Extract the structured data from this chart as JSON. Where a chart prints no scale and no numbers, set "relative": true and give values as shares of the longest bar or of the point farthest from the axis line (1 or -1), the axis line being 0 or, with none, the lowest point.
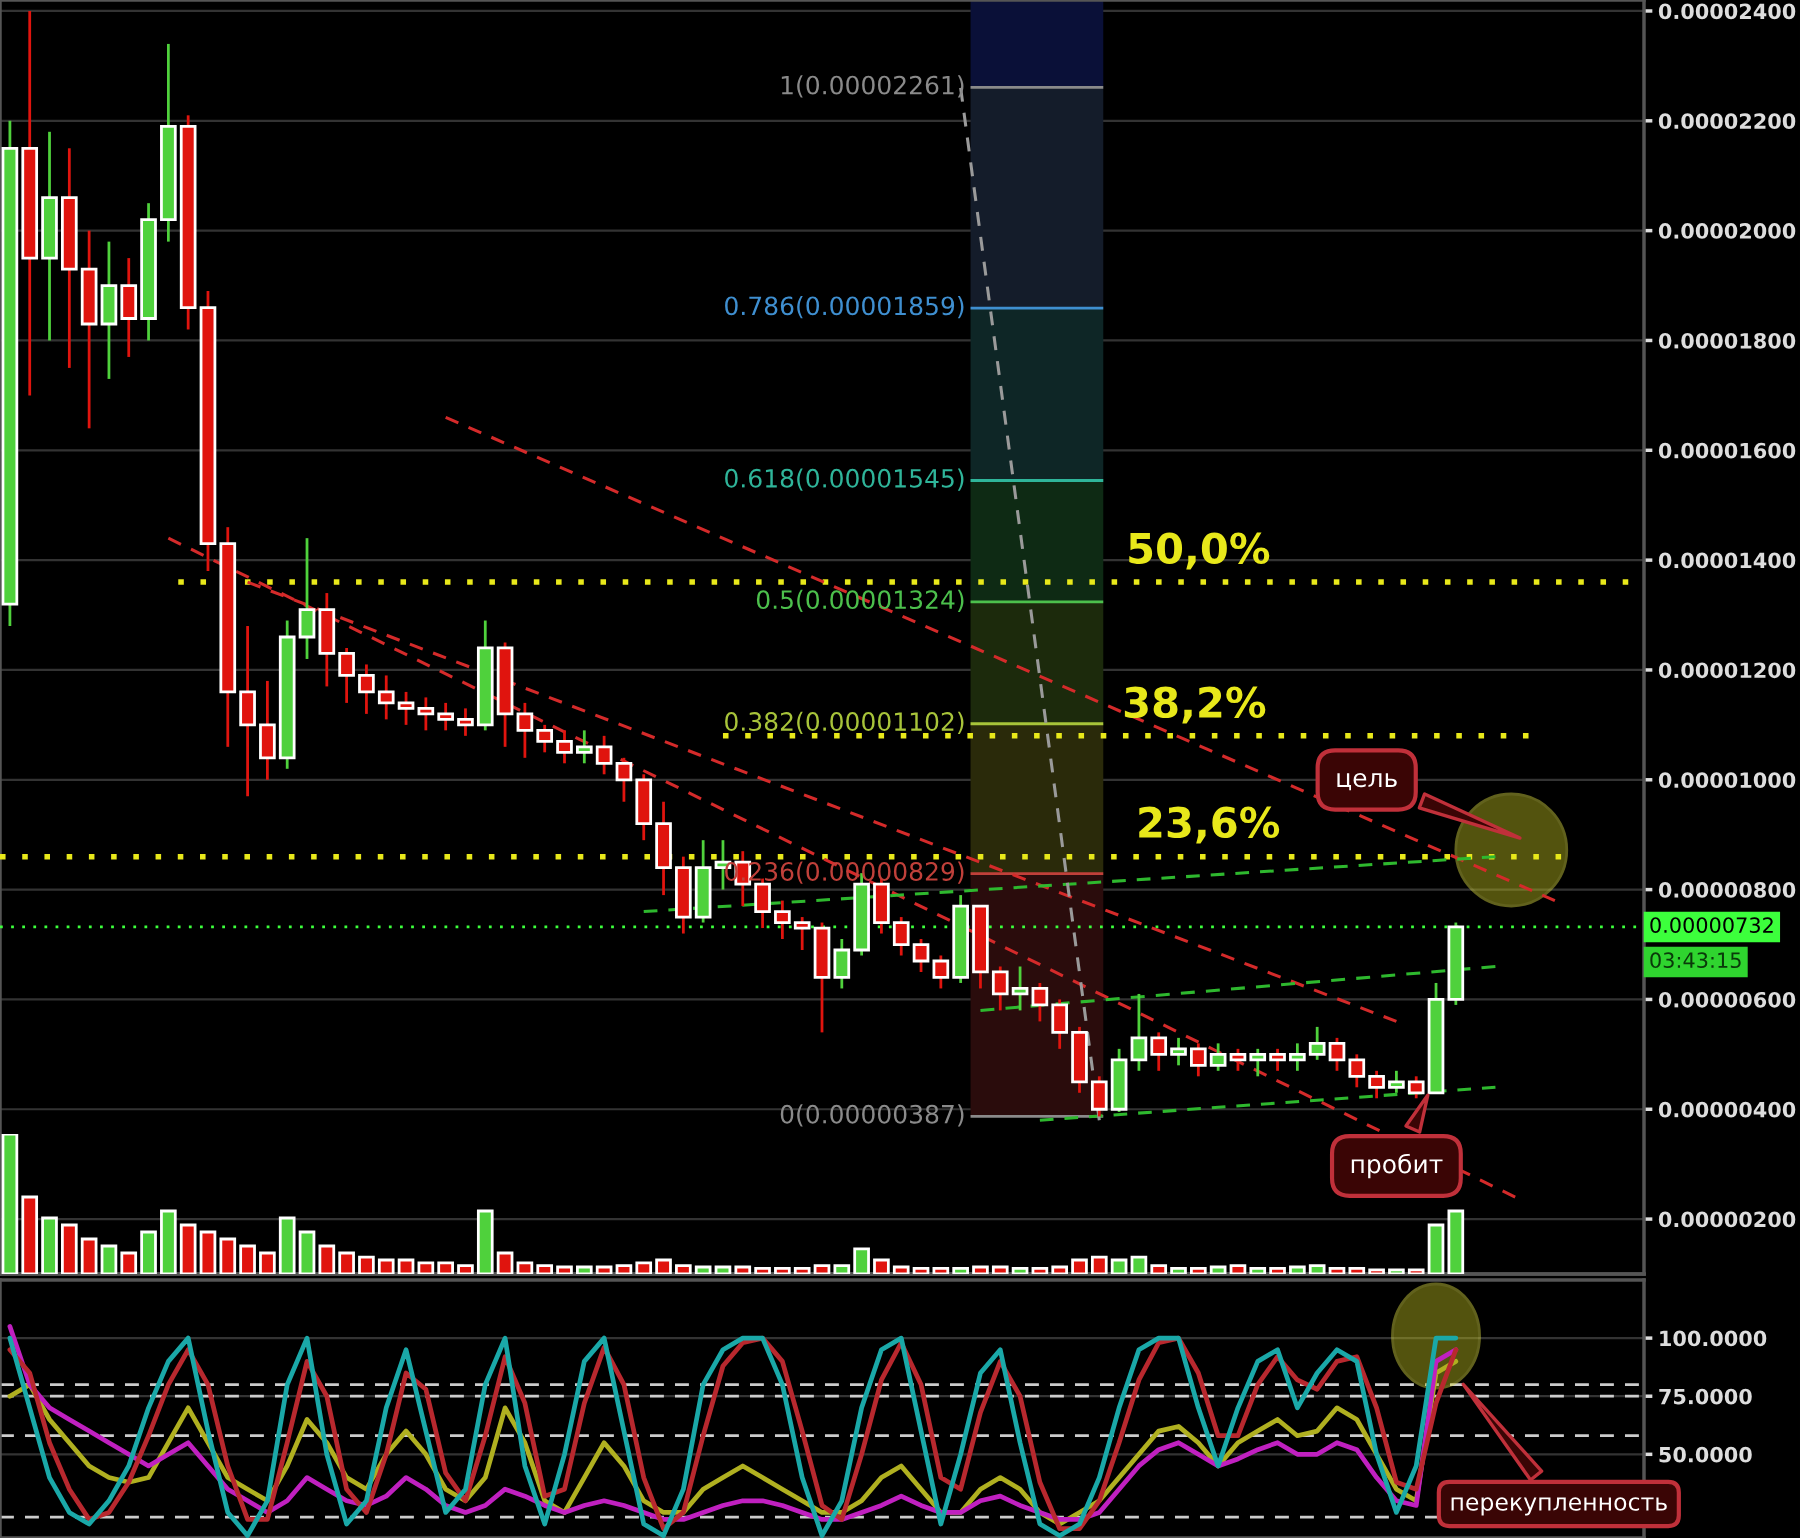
{
  "chart_data": [
    {
      "type": "candlestick",
      "categories": [
        null,
        null,
        null,
        null,
        null,
        null,
        null,
        null,
        null,
        null,
        null,
        null,
        null,
        null,
        null,
        null,
        null,
        null,
        null,
        null,
        null,
        null,
        null,
        null,
        null,
        null,
        null,
        null,
        null,
        null,
        null,
        null,
        null,
        null,
        null,
        null,
        null,
        null,
        null,
        null,
        null,
        null,
        null,
        null,
        null,
        null,
        null,
        null,
        null,
        null,
        null,
        null,
        null,
        null,
        null,
        null,
        null,
        null,
        null,
        null,
        null,
        null,
        null,
        null,
        null,
        null,
        null,
        null,
        null,
        null,
        null,
        null,
        null,
        null,
        null,
        null,
        null,
        null,
        null,
        null,
        null,
        null,
        null
      ],
      "ohlc": [
        [
          1.32e-05,
          2.2e-05,
          1.28e-05,
          2.15e-05
        ],
        [
          2.15e-05,
          2.4e-05,
          1.7e-05,
          1.95e-05
        ],
        [
          1.95e-05,
          2.18e-05,
          1.8e-05,
          2.06e-05
        ],
        [
          2.06e-05,
          2.15e-05,
          1.75e-05,
          1.93e-05
        ],
        [
          1.93e-05,
          2e-05,
          1.64e-05,
          1.83e-05
        ],
        [
          1.83e-05,
          1.98e-05,
          1.73e-05,
          1.9e-05
        ],
        [
          1.9e-05,
          1.95e-05,
          1.77e-05,
          1.84e-05
        ],
        [
          1.84e-05,
          2.05e-05,
          1.8e-05,
          2.02e-05
        ],
        [
          2.02e-05,
          2.34e-05,
          1.98e-05,
          2.19e-05
        ],
        [
          2.19e-05,
          2.21e-05,
          1.82e-05,
          1.86e-05
        ],
        [
          1.86e-05,
          1.89e-05,
          1.38e-05,
          1.43e-05
        ],
        [
          1.43e-05,
          1.46e-05,
          1.06e-05,
          1.16e-05
        ],
        [
          1.16e-05,
          1.28e-05,
          9.7e-06,
          1.1e-05
        ],
        [
          1.1e-05,
          1.18e-05,
          1e-05,
          1.04e-05
        ],
        [
          1.04e-05,
          1.29e-05,
          1.02e-05,
          1.26e-05
        ],
        [
          1.26e-05,
          1.44e-05,
          1.22e-05,
          1.31e-05
        ],
        [
          1.31e-05,
          1.34e-05,
          1.17e-05,
          1.23e-05
        ],
        [
          1.23e-05,
          1.24e-05,
          1.14e-05,
          1.19e-05
        ],
        [
          1.19e-05,
          1.21e-05,
          1.12e-05,
          1.16e-05
        ],
        [
          1.16e-05,
          1.19e-05,
          1.11e-05,
          1.14e-05
        ],
        [
          1.14e-05,
          1.16e-05,
          1.1e-05,
          1.13e-05
        ],
        [
          1.13e-05,
          1.15e-05,
          1.09e-05,
          1.12e-05
        ],
        [
          1.12e-05,
          1.14e-05,
          1.09e-05,
          1.11e-05
        ],
        [
          1.11e-05,
          1.13e-05,
          1.08e-05,
          1.1e-05
        ],
        [
          1.1e-05,
          1.29e-05,
          1.09e-05,
          1.24e-05
        ],
        [
          1.24e-05,
          1.25e-05,
          1.06e-05,
          1.12e-05
        ],
        [
          1.12e-05,
          1.14e-05,
          1.04e-05,
          1.09e-05
        ],
        [
          1.09e-05,
          1.1e-05,
          1.05e-05,
          1.07e-05
        ],
        [
          1.07e-05,
          1.09e-05,
          1.03e-05,
          1.05e-05
        ],
        [
          1.05e-05,
          1.09e-05,
          1.03e-05,
          1.06e-05
        ],
        [
          1.06e-05,
          1.08e-05,
          1.01e-05,
          1.03e-05
        ],
        [
          1.03e-05,
          1.04e-05,
          9.6e-06,
          1e-05
        ],
        [
          1e-05,
          1.01e-05,
          8.9e-06,
          9.2e-06
        ],
        [
          9.2e-06,
          9.6e-06,
          7.9e-06,
          8.4e-06
        ],
        [
          8.4e-06,
          8.6e-06,
          7.2e-06,
          7.5e-06
        ],
        [
          7.5e-06,
          8.9e-06,
          7.4e-06,
          8.4e-06
        ],
        [
          8.4e-06,
          8.9e-06,
          8e-06,
          8.5e-06
        ],
        [
          8.5e-06,
          8.7e-06,
          7.7e-06,
          8.1e-06
        ],
        [
          8.1e-06,
          8.2e-06,
          7.3e-06,
          7.6e-06
        ],
        [
          7.6e-06,
          7.8e-06,
          7.1e-06,
          7.4e-06
        ],
        [
          7.4e-06,
          7.5e-06,
          6.9e-06,
          7.3e-06
        ],
        [
          7.3e-06,
          7.4e-06,
          5.4e-06,
          6.4e-06
        ],
        [
          6.4e-06,
          7.1e-06,
          6.2e-06,
          6.9e-06
        ],
        [
          6.9e-06,
          8.3e-06,
          6.8e-06,
          8.1e-06
        ],
        [
          8.1e-06,
          8.2e-06,
          7.2e-06,
          7.4e-06
        ],
        [
          7.4e-06,
          7.5e-06,
          6.8e-06,
          7e-06
        ],
        [
          7e-06,
          7.1e-06,
          6.5e-06,
          6.7e-06
        ],
        [
          6.7e-06,
          6.8e-06,
          6.2e-06,
          6.4e-06
        ],
        [
          6.4e-06,
          7.9e-06,
          6.3e-06,
          7.7e-06
        ],
        [
          7.7e-06,
          7.7e-06,
          6.2e-06,
          6.5e-06
        ],
        [
          6.5e-06,
          6.6e-06,
          5.8e-06,
          6.1e-06
        ],
        [
          6.1e-06,
          6.6e-06,
          5.8e-06,
          6.2e-06
        ],
        [
          6.2e-06,
          6.3e-06,
          5.6e-06,
          5.9e-06
        ],
        [
          5.9e-06,
          6e-06,
          5.1e-06,
          5.4e-06
        ],
        [
          5.4e-06,
          5.5e-06,
          4.3e-06,
          4.5e-06
        ],
        [
          4.5e-06,
          4.6e-06,
          3.87e-06,
          4e-06
        ],
        [
          4e-06,
          5.1e-06,
          3.95e-06,
          4.9e-06
        ],
        [
          4.9e-06,
          6.1e-06,
          4.7e-06,
          5.3e-06
        ],
        [
          5.3e-06,
          5.4e-06,
          4.7e-06,
          5e-06
        ],
        [
          5e-06,
          5.3e-06,
          4.8e-06,
          5.1e-06
        ],
        [
          5.1e-06,
          5.2e-06,
          4.6e-06,
          4.8e-06
        ],
        [
          4.8e-06,
          5.2e-06,
          4.7e-06,
          5e-06
        ],
        [
          5e-06,
          5.1e-06,
          4.7e-06,
          4.9e-06
        ],
        [
          4.9e-06,
          5.1e-06,
          4.6e-06,
          5e-06
        ],
        [
          5e-06,
          5.1e-06,
          4.7e-06,
          4.9e-06
        ],
        [
          4.9e-06,
          5.2e-06,
          4.7e-06,
          5e-06
        ],
        [
          5e-06,
          5.5e-06,
          4.9e-06,
          5.2e-06
        ],
        [
          5.2e-06,
          5.3e-06,
          4.7e-06,
          4.9e-06
        ],
        [
          4.9e-06,
          5e-06,
          4.4e-06,
          4.6e-06
        ],
        [
          4.6e-06,
          4.7e-06,
          4.2e-06,
          4.4e-06
        ],
        [
          4.4e-06,
          4.7e-06,
          4.3e-06,
          4.5e-06
        ],
        [
          4.5e-06,
          4.6e-06,
          4.2e-06,
          4.3e-06
        ],
        [
          4.3e-06,
          6.3e-06,
          4.3e-06,
          6e-06
        ],
        [
          6e-06,
          7.4e-06,
          5.9e-06,
          7.32e-06
        ],
        null,
        null,
        null,
        null,
        null,
        null,
        null,
        null,
        null
      ],
      "colors": [
        "#4fd13c",
        "#e0140e",
        "#4fd13c",
        "#e0140e",
        "#e0140e",
        "#4fd13c",
        "#e0140e",
        "#4fd13c",
        "#4fd13c",
        "#e0140e",
        "#e0140e",
        "#e0140e",
        "#e0140e",
        "#e0140e",
        "#4fd13c",
        "#4fd13c",
        "#e0140e",
        "#e0140e",
        "#e0140e",
        "#e0140e",
        "#e0140e",
        "#e0140e",
        "#e0140e",
        "#e0140e",
        "#4fd13c",
        "#e0140e",
        "#e0140e",
        "#e0140e",
        "#e0140e",
        "#4fd13c",
        "#e0140e",
        "#e0140e",
        "#e0140e",
        "#e0140e",
        "#e0140e",
        "#4fd13c",
        "#4fd13c",
        "#e0140e",
        "#e0140e",
        "#e0140e",
        "#e0140e",
        "#e0140e",
        "#4fd13c",
        "#4fd13c",
        "#e0140e",
        "#e0140e",
        "#e0140e",
        "#e0140e",
        "#4fd13c",
        "#e0140e",
        "#e0140e",
        "#4fd13c",
        "#e0140e",
        "#e0140e",
        "#e0140e",
        "#e0140e",
        "#4fd13c",
        "#4fd13c",
        "#e0140e",
        "#4fd13c",
        "#e0140e",
        "#4fd13c",
        "#e0140e",
        "#4fd13c",
        "#e0140e",
        "#4fd13c",
        "#4fd13c",
        "#e0140e",
        "#e0140e",
        "#e0140e",
        "#4fd13c",
        "#e0140e",
        "#4fd13c",
        "#4fd13c",
        null,
        null,
        null,
        null,
        null,
        null,
        null,
        null,
        null
      ],
      "series": [
        {
          "type": "line",
          "color": "#d42a2a",
          "line_style": "dashed",
          "values": [
            null,
            null,
            null,
            null,
            null,
            null,
            null,
            null,
            1.44e-05,
            null,
            null,
            null,
            null,
            null,
            null,
            null,
            null,
            null,
            null,
            null,
            null,
            null,
            null,
            null,
            null,
            null,
            null,
            null,
            null,
            null,
            null,
            null,
            null,
            null,
            null,
            null,
            null,
            null,
            null,
            null,
            null,
            null,
            null,
            null,
            null,
            null,
            null,
            null,
            null,
            null,
            null,
            null,
            null,
            null,
            null,
            null,
            null,
            null,
            null,
            null,
            null,
            null,
            null,
            null,
            null,
            null,
            null,
            null,
            null,
            null,
            null,
            null,
            null,
            null,
            null,
            null,
            2.4e-06,
            null,
            null,
            null,
            null,
            null,
            null
          ]
        },
        {
          "type": "line",
          "color": "#d42a2a",
          "line_style": "dashed",
          "values": [
            null,
            null,
            null,
            null,
            null,
            null,
            null,
            null,
            null,
            null,
            null,
            null,
            1.36e-05,
            null,
            null,
            null,
            null,
            null,
            null,
            null,
            null,
            null,
            null,
            null,
            null,
            null,
            null,
            null,
            null,
            null,
            null,
            null,
            null,
            null,
            null,
            null,
            null,
            null,
            null,
            null,
            null,
            null,
            null,
            null,
            null,
            null,
            null,
            null,
            null,
            null,
            null,
            null,
            null,
            null,
            null,
            null,
            null,
            null,
            null,
            null,
            null,
            null,
            null,
            null,
            null,
            null,
            null,
            null,
            null,
            null,
            5.6e-06,
            null,
            null,
            null,
            null,
            null,
            null,
            null,
            null,
            null,
            null,
            null,
            null
          ]
        },
        {
          "type": "line",
          "color": "#d42a2a",
          "line_style": "dashed",
          "values": [
            null,
            null,
            null,
            null,
            null,
            null,
            null,
            null,
            null,
            null,
            null,
            null,
            null,
            null,
            null,
            null,
            null,
            null,
            null,
            null,
            null,
            null,
            1.66e-05,
            null,
            null,
            null,
            null,
            null,
            null,
            null,
            null,
            null,
            null,
            null,
            null,
            null,
            null,
            null,
            null,
            null,
            null,
            null,
            null,
            null,
            null,
            null,
            null,
            null,
            null,
            null,
            null,
            null,
            null,
            null,
            null,
            null,
            null,
            null,
            null,
            null,
            null,
            null,
            null,
            null,
            null,
            null,
            null,
            null,
            null,
            null,
            null,
            null,
            null,
            null,
            null,
            null,
            null,
            null,
            7.8e-06,
            null,
            null,
            null,
            null
          ]
        },
        {
          "type": "line",
          "color": "#2eb82e",
          "line_style": "dashed",
          "values": [
            null,
            null,
            null,
            null,
            null,
            null,
            null,
            null,
            null,
            null,
            null,
            null,
            null,
            null,
            null,
            null,
            null,
            null,
            null,
            null,
            null,
            null,
            null,
            null,
            null,
            null,
            null,
            null,
            null,
            null,
            null,
            null,
            7.6e-06,
            null,
            null,
            null,
            null,
            null,
            null,
            null,
            null,
            null,
            null,
            null,
            null,
            null,
            null,
            null,
            null,
            null,
            null,
            null,
            null,
            null,
            null,
            null,
            null,
            null,
            null,
            null,
            null,
            null,
            null,
            null,
            null,
            null,
            null,
            null,
            null,
            null,
            null,
            null,
            null,
            null,
            null,
            8.6e-06,
            null,
            null,
            null,
            null,
            null,
            null,
            null
          ]
        },
        {
          "type": "line",
          "color": "#2eb82e",
          "line_style": "dashed",
          "values": [
            null,
            null,
            null,
            null,
            null,
            null,
            null,
            null,
            null,
            null,
            null,
            null,
            null,
            null,
            null,
            null,
            null,
            null,
            null,
            null,
            null,
            null,
            null,
            null,
            null,
            null,
            null,
            null,
            null,
            null,
            null,
            null,
            null,
            null,
            null,
            null,
            null,
            null,
            null,
            null,
            null,
            null,
            null,
            null,
            null,
            null,
            null,
            null,
            null,
            5.8e-06,
            null,
            null,
            null,
            null,
            null,
            null,
            null,
            null,
            null,
            null,
            null,
            null,
            null,
            null,
            null,
            null,
            null,
            null,
            null,
            null,
            null,
            null,
            null,
            null,
            null,
            6.6e-06,
            null,
            null,
            null,
            null,
            null,
            null,
            null
          ]
        },
        {
          "type": "line",
          "color": "#2eb82e",
          "line_style": "dashed",
          "values": [
            null,
            null,
            null,
            null,
            null,
            null,
            null,
            null,
            null,
            null,
            null,
            null,
            null,
            null,
            null,
            null,
            null,
            null,
            null,
            null,
            null,
            null,
            null,
            null,
            null,
            null,
            null,
            null,
            null,
            null,
            null,
            null,
            null,
            null,
            null,
            null,
            null,
            null,
            null,
            null,
            null,
            null,
            null,
            null,
            null,
            null,
            null,
            null,
            null,
            null,
            null,
            null,
            3.8e-06,
            null,
            null,
            null,
            null,
            null,
            null,
            null,
            null,
            null,
            null,
            null,
            null,
            null,
            null,
            null,
            null,
            null,
            null,
            null,
            null,
            null,
            null,
            4.4e-06,
            null,
            null,
            null,
            null,
            null,
            null,
            null
          ]
        },
        {
          "type": "line",
          "color": "#9a9a9a",
          "line_style": "dashed",
          "values": [
            null,
            null,
            null,
            null,
            null,
            null,
            null,
            null,
            null,
            null,
            null,
            null,
            null,
            null,
            null,
            null,
            null,
            null,
            null,
            null,
            null,
            null,
            null,
            null,
            null,
            null,
            null,
            null,
            null,
            null,
            null,
            null,
            null,
            null,
            null,
            null,
            null,
            null,
            null,
            null,
            null,
            null,
            null,
            null,
            null,
            null,
            null,
            null,
            2.26e-05,
            null,
            null,
            null,
            null,
            null,
            null,
            3.8e-06,
            null,
            null,
            null,
            null,
            null,
            null,
            null,
            null,
            null,
            null,
            null,
            null,
            null,
            null,
            null,
            null,
            null,
            null,
            null,
            null,
            null,
            null,
            null,
            null,
            null,
            null,
            null
          ]
        }
      ],
      "ylim": [
        1e-06,
        2.42e-05
      ],
      "yticks": [
        {
          "value": 2e-06,
          "label": "0.00000200"
        },
        {
          "value": 4e-06,
          "label": "0.00000400"
        },
        {
          "value": 6e-06,
          "label": "0.00000600"
        },
        {
          "value": 8e-06,
          "label": "0.00000800"
        },
        {
          "value": 1e-05,
          "label": "0.00001000"
        },
        {
          "value": 1.2e-05,
          "label": "0.00001200"
        },
        {
          "value": 1.4e-05,
          "label": "0.00001400"
        },
        {
          "value": 1.6e-05,
          "label": "0.00001600"
        },
        {
          "value": 1.8e-05,
          "label": "0.00001800"
        },
        {
          "value": 2e-05,
          "label": "0.00002000"
        },
        {
          "value": 2.2e-05,
          "label": "0.00002200"
        },
        {
          "value": 2.4e-05,
          "label": "0.00002400"
        }
      ],
      "tick_labels": "y",
      "grid": "y",
      "bands": [
        {
          "axis": "y",
          "from": 3.87e-06,
          "to": 8.29e-06,
          "color": "#2a0c0c"
        },
        {
          "axis": "y",
          "from": 8.29e-06,
          "to": 1.102e-05,
          "color": "#2a2a0a"
        },
        {
          "axis": "y",
          "from": 1.102e-05,
          "to": 1.324e-05,
          "color": "#1c2a0c"
        },
        {
          "axis": "y",
          "from": 1.324e-05,
          "to": 1.545e-05,
          "color": "#0e2a14"
        },
        {
          "axis": "y",
          "from": 1.545e-05,
          "to": 1.859e-05,
          "color": "#0e2626"
        },
        {
          "axis": "y",
          "from": 1.859e-05,
          "to": 2.261e-05,
          "color": "#141c2a"
        },
        {
          "axis": "y",
          "from": 2.261e-05,
          "to": 2.42e-05,
          "color": "#0a1038"
        }
      ],
      "ref_lines": [
        {
          "axis": "y",
          "value": 2.261e-05,
          "label": "1(0.00002261)",
          "color": "#8a8a8a",
          "line_style": "solid"
        },
        {
          "axis": "y",
          "value": 1.859e-05,
          "label": "0.786(0.00001859)",
          "color": "#3f8fd0",
          "line_style": "solid"
        },
        {
          "axis": "y",
          "value": 1.545e-05,
          "label": "0.618(0.00001545)",
          "color": "#2fb59a",
          "line_style": "solid"
        },
        {
          "axis": "y",
          "value": 1.324e-05,
          "label": "0.5(0.00001324)",
          "color": "#4cc04c",
          "line_style": "solid"
        },
        {
          "axis": "y",
          "value": 1.102e-05,
          "label": "0.382(0.00001102)",
          "color": "#a8c43a",
          "line_style": "solid"
        },
        {
          "axis": "y",
          "value": 8.29e-06,
          "label": "0.236(0.00000829)",
          "color": "#c0403a",
          "line_style": "solid"
        },
        {
          "axis": "y",
          "value": 3.87e-06,
          "label": "0(0.00000387)",
          "color": "#8a8a8a",
          "line_style": "solid"
        },
        {
          "axis": "y",
          "value": 1.36e-05,
          "color": "#e8e81a",
          "line_style": "dotted"
        },
        {
          "axis": "y",
          "value": 1.08e-05,
          "color": "#e8e81a",
          "line_style": "dotted"
        },
        {
          "axis": "y",
          "value": 8.6e-06,
          "color": "#e8e81a",
          "line_style": "dotted"
        },
        {
          "axis": "y",
          "value": 7.32e-06,
          "label": "0.00000732",
          "color": "#3cff3c",
          "line_style": "dotted"
        }
      ],
      "annotations": [
        "50,0%",
        "38,2%",
        "23,6%",
        "цель",
        "пробит",
        "03:43:15"
      ]
    },
    {
      "type": "bar",
      "relative": true,
      "tick_labels": false,
      "categories": [
        null,
        null,
        null,
        null,
        null,
        null,
        null,
        null,
        null,
        null,
        null,
        null,
        null,
        null,
        null,
        null,
        null,
        null,
        null,
        null,
        null,
        null,
        null,
        null,
        null,
        null,
        null,
        null,
        null,
        null,
        null,
        null,
        null,
        null,
        null,
        null,
        null,
        null,
        null,
        null,
        null,
        null,
        null,
        null,
        null,
        null,
        null,
        null,
        null,
        null,
        null,
        null,
        null,
        null,
        null,
        null,
        null,
        null,
        null,
        null,
        null,
        null,
        null,
        null,
        null,
        null,
        null,
        null,
        null,
        null,
        null,
        null,
        null,
        null,
        null,
        null,
        null,
        null,
        null,
        null,
        null,
        null,
        null
      ],
      "values": [
        1.0,
        0.55,
        0.4,
        0.35,
        0.25,
        0.2,
        0.15,
        0.3,
        0.45,
        0.35,
        0.3,
        0.25,
        0.2,
        0.15,
        0.4,
        0.3,
        0.2,
        0.15,
        0.12,
        0.1,
        0.1,
        0.08,
        0.08,
        0.06,
        0.45,
        0.15,
        0.08,
        0.06,
        0.05,
        0.05,
        0.05,
        0.06,
        0.08,
        0.1,
        0.06,
        0.05,
        0.05,
        0.05,
        0.04,
        0.04,
        0.04,
        0.06,
        0.06,
        0.18,
        0.1,
        0.05,
        0.04,
        0.04,
        0.04,
        0.05,
        0.05,
        0.04,
        0.04,
        0.05,
        0.1,
        0.12,
        0.1,
        0.12,
        0.06,
        0.04,
        0.04,
        0.05,
        0.06,
        0.04,
        0.04,
        0.05,
        0.06,
        0.04,
        0.04,
        0.03,
        0.03,
        0.03,
        0.35,
        0.45,
        null,
        null,
        null,
        null,
        null,
        null,
        null,
        null,
        null
      ],
      "colors": [
        "#4fd13c",
        "#e0140e",
        "#4fd13c",
        "#e0140e",
        "#e0140e",
        "#4fd13c",
        "#e0140e",
        "#4fd13c",
        "#4fd13c",
        "#e0140e",
        "#e0140e",
        "#e0140e",
        "#e0140e",
        "#e0140e",
        "#4fd13c",
        "#4fd13c",
        "#e0140e",
        "#e0140e",
        "#e0140e",
        "#e0140e",
        "#e0140e",
        "#e0140e",
        "#e0140e",
        "#e0140e",
        "#4fd13c",
        "#e0140e",
        "#e0140e",
        "#e0140e",
        "#e0140e",
        "#4fd13c",
        "#e0140e",
        "#e0140e",
        "#e0140e",
        "#e0140e",
        "#e0140e",
        "#4fd13c",
        "#4fd13c",
        "#e0140e",
        "#e0140e",
        "#e0140e",
        "#e0140e",
        "#e0140e",
        "#4fd13c",
        "#4fd13c",
        "#e0140e",
        "#e0140e",
        "#e0140e",
        "#e0140e",
        "#4fd13c",
        "#e0140e",
        "#e0140e",
        "#4fd13c",
        "#e0140e",
        "#e0140e",
        "#e0140e",
        "#e0140e",
        "#4fd13c",
        "#4fd13c",
        "#e0140e",
        "#4fd13c",
        "#e0140e",
        "#4fd13c",
        "#e0140e",
        "#4fd13c",
        "#e0140e",
        "#4fd13c",
        "#4fd13c",
        "#e0140e",
        "#e0140e",
        "#e0140e",
        "#4fd13c",
        "#e0140e",
        "#4fd13c",
        "#4fd13c",
        null,
        null,
        null,
        null,
        null,
        null,
        null,
        null,
        null
      ]
    },
    {
      "type": "line",
      "categories": [
        null,
        null,
        null,
        null,
        null,
        null,
        null,
        null,
        null,
        null,
        null,
        null,
        null,
        null,
        null,
        null,
        null,
        null,
        null,
        null,
        null,
        null,
        null,
        null,
        null,
        null,
        null,
        null,
        null,
        null,
        null,
        null,
        null,
        null,
        null,
        null,
        null,
        null,
        null,
        null,
        null,
        null,
        null,
        null,
        null,
        null,
        null,
        null,
        null,
        null,
        null,
        null,
        null,
        null,
        null,
        null,
        null,
        null,
        null,
        null,
        null,
        null,
        null,
        null,
        null,
        null,
        null,
        null,
        null,
        null,
        null,
        null,
        null,
        null,
        null,
        null,
        null,
        null,
        null,
        null,
        null,
        null,
        null
      ],
      "series": [
        {
          "color": "#b0b020",
          "values": [
            75,
            80,
            65,
            55,
            45,
            40,
            38,
            40,
            55,
            70,
            55,
            40,
            35,
            30,
            45,
            65,
            55,
            40,
            35,
            50,
            60,
            50,
            35,
            30,
            40,
            70,
            55,
            30,
            25,
            40,
            55,
            45,
            30,
            25,
            25,
            35,
            40,
            45,
            40,
            35,
            30,
            25,
            25,
            30,
            40,
            45,
            35,
            25,
            25,
            35,
            40,
            35,
            25,
            20,
            25,
            30,
            40,
            50,
            60,
            62,
            55,
            45,
            55,
            60,
            65,
            58,
            60,
            70,
            65,
            50,
            35,
            30,
            85,
            90,
            null,
            null,
            null,
            null,
            null,
            null,
            null,
            null,
            null
          ]
        },
        {
          "color": "#c020c0",
          "values": [
            105,
            80,
            70,
            65,
            60,
            55,
            50,
            45,
            50,
            55,
            45,
            35,
            30,
            25,
            30,
            40,
            35,
            30,
            28,
            32,
            40,
            35,
            28,
            25,
            28,
            35,
            32,
            28,
            25,
            28,
            30,
            28,
            25,
            22,
            22,
            25,
            28,
            30,
            30,
            28,
            25,
            22,
            22,
            25,
            28,
            32,
            28,
            25,
            25,
            30,
            32,
            28,
            25,
            22,
            22,
            25,
            35,
            45,
            52,
            55,
            50,
            45,
            48,
            52,
            55,
            50,
            50,
            55,
            52,
            40,
            30,
            28,
            90,
            95,
            null,
            null,
            null,
            null,
            null,
            null,
            null,
            null,
            null
          ]
        },
        {
          "color": "#b8282e",
          "values": [
            95,
            85,
            55,
            35,
            22,
            25,
            38,
            58,
            80,
            95,
            80,
            45,
            22,
            22,
            55,
            90,
            75,
            35,
            25,
            50,
            85,
            78,
            42,
            30,
            58,
            92,
            72,
            32,
            35,
            72,
            96,
            80,
            40,
            18,
            25,
            58,
            88,
            98,
            100,
            90,
            60,
            28,
            22,
            50,
            82,
            98,
            80,
            40,
            35,
            68,
            90,
            75,
            38,
            18,
            18,
            30,
            55,
            82,
            98,
            100,
            85,
            58,
            58,
            80,
            92,
            82,
            78,
            90,
            92,
            70,
            38,
            35,
            72,
            95,
            null,
            null,
            null,
            null,
            null,
            null,
            null,
            null,
            null
          ]
        },
        {
          "color": "#1aa8a8",
          "values": [
            100,
            70,
            40,
            25,
            20,
            30,
            45,
            70,
            90,
            100,
            60,
            25,
            15,
            30,
            80,
            100,
            50,
            20,
            30,
            70,
            95,
            60,
            25,
            35,
            80,
            100,
            45,
            20,
            50,
            90,
            100,
            60,
            20,
            15,
            35,
            80,
            95,
            100,
            100,
            80,
            40,
            15,
            30,
            70,
            95,
            100,
            60,
            20,
            50,
            85,
            95,
            55,
            20,
            15,
            20,
            40,
            70,
            95,
            100,
            100,
            70,
            45,
            70,
            90,
            95,
            70,
            85,
            95,
            90,
            50,
            25,
            45,
            100,
            100,
            null,
            null,
            null,
            null,
            null,
            null,
            null,
            null,
            null
          ]
        }
      ],
      "ylim": [
        14,
        125
      ],
      "yticks": [
        {
          "value": 50,
          "label": "50.0000"
        },
        {
          "value": 75,
          "label": "75.0000"
        },
        {
          "value": 100,
          "label": "100.0000"
        }
      ],
      "tick_labels": "y",
      "grid": "y",
      "ref_lines": [
        {
          "axis": "y",
          "value": 80,
          "color": "#cccccc",
          "line_style": "dashed"
        },
        {
          "axis": "y",
          "value": 75,
          "color": "#cccccc",
          "line_style": "dashed"
        },
        {
          "axis": "y",
          "value": 58,
          "color": "#cccccc",
          "line_style": "dashed"
        },
        {
          "axis": "y",
          "value": 23,
          "color": "#cccccc",
          "line_style": "dashed"
        }
      ],
      "annotations": [
        "перекупленность"
      ]
    }
  ]
}
